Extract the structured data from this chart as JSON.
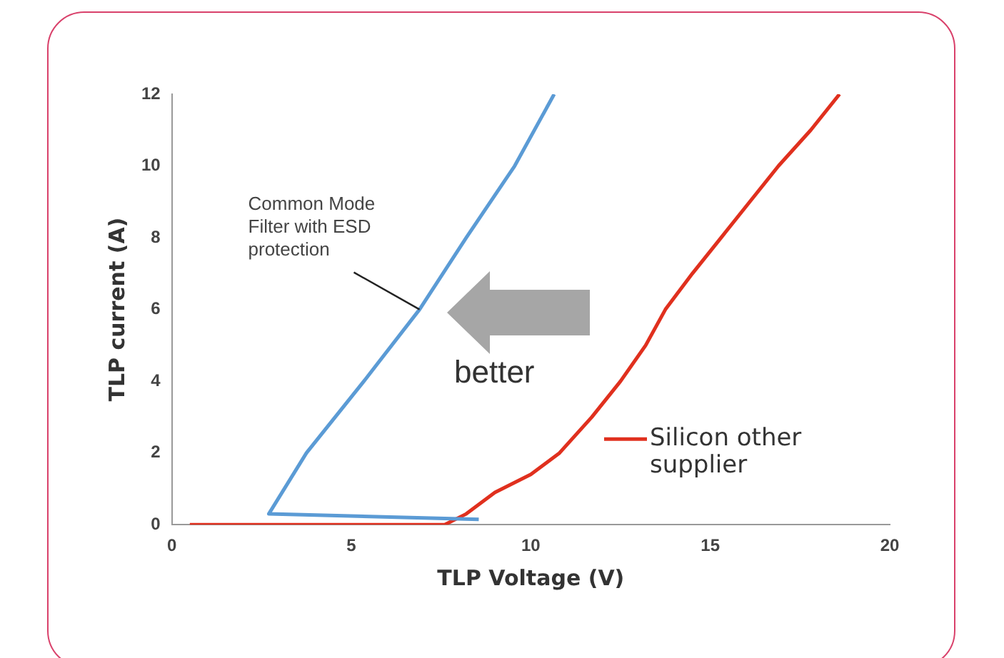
{
  "chart_data": {
    "type": "line",
    "xlabel": "TLP Voltage (V)",
    "ylabel": "TLP current (A)",
    "xlim": [
      0,
      20
    ],
    "xticks": [
      0,
      5,
      10,
      15,
      20
    ],
    "ylim": [
      0,
      12
    ],
    "yticks": [
      0,
      2,
      4,
      6,
      8,
      10,
      12
    ],
    "grid": false,
    "legend": "right",
    "marker": "none",
    "line_style": "solid",
    "series": [
      {
        "color": "#5b9bd5",
        "x": [
          8.55,
          2.7,
          3.75,
          5.35,
          6.9,
          8.2,
          9.55,
          10.65
        ],
        "values": [
          0.15,
          0.3,
          2,
          4,
          6,
          8,
          10,
          12
        ]
      },
      {
        "name": "Silicon other supplier",
        "color": "#e0301e",
        "x": [
          0.5,
          7.6,
          8.2,
          9,
          10,
          10.8,
          11.7,
          12.5,
          13.2,
          13.75,
          14.5,
          15.3,
          16.1,
          16.9,
          17.8,
          18.6
        ],
        "values": [
          0,
          0,
          0.3,
          0.9,
          1.4,
          2,
          3,
          4,
          5,
          6,
          7,
          8,
          9,
          10,
          11,
          12
        ]
      }
    ],
    "annotations": [
      {
        "text": "Common Mode Filter with ESD protection",
        "x": 6.9,
        "y": 6
      },
      "better"
    ]
  }
}
